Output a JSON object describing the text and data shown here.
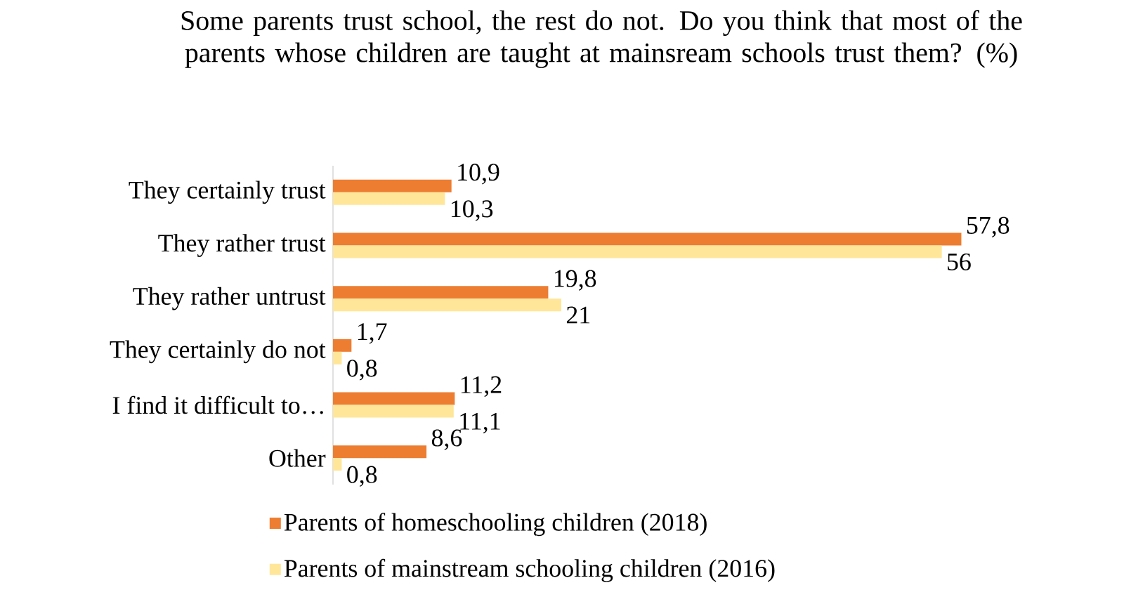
{
  "chart_data": {
    "type": "bar",
    "orientation": "horizontal",
    "title": "Some parents trust school, the rest do not. Do you think that most of the parents whose children are taught at mainsream schools trust them? (%)",
    "categories": [
      "They certainly trust",
      "They rather trust",
      "They rather untrust",
      "They certainly do not",
      "I find it difficult to…",
      "Other"
    ],
    "series": [
      {
        "name": "Parents of homeschooling children (2018)",
        "color": "#ed7d31",
        "values": [
          10.9,
          57.8,
          19.8,
          1.7,
          11.2,
          8.6
        ],
        "value_labels": [
          "10,9",
          "57,8",
          "19,8",
          "1,7",
          "11,2",
          "8,6"
        ]
      },
      {
        "name": "Parents of mainstream schooling children (2016)",
        "color": "#ffe699",
        "values": [
          10.3,
          56,
          21,
          0.8,
          11.1,
          0.8
        ],
        "value_labels": [
          "10,3",
          "56",
          "21",
          "0,8",
          "11,1",
          "0,8"
        ]
      }
    ],
    "legend": "bottom"
  }
}
